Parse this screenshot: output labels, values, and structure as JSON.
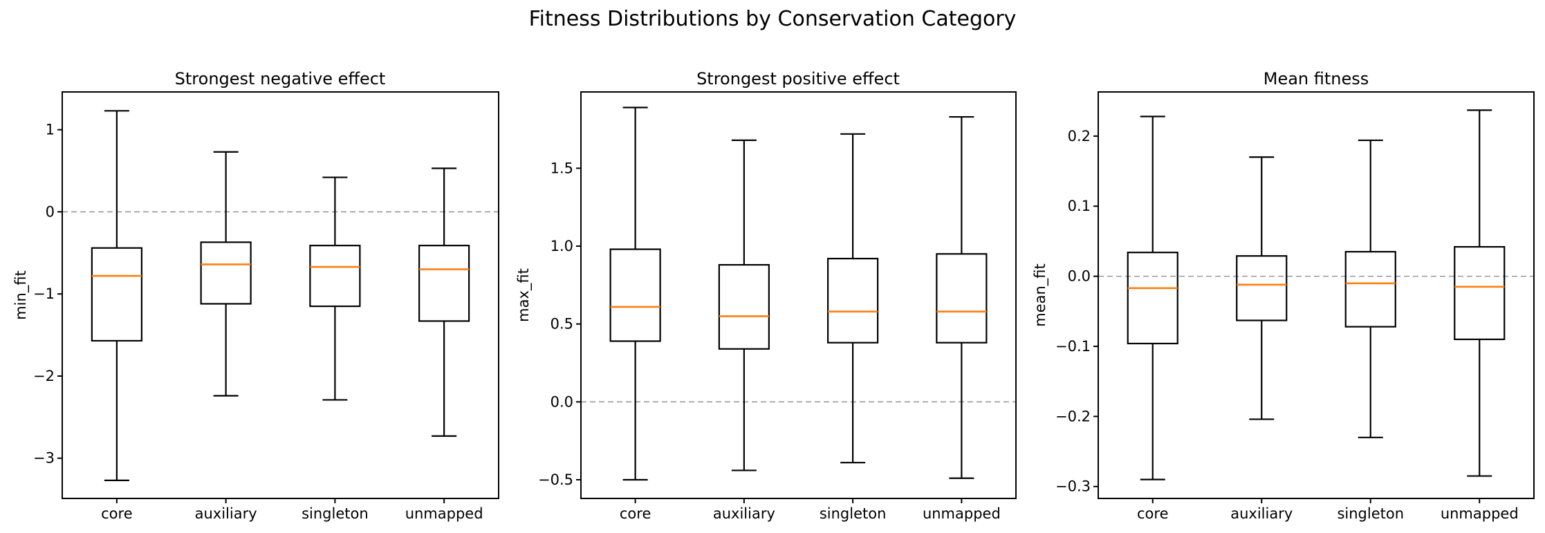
{
  "figure": {
    "title": "Fitness Distributions by Conservation Category",
    "background": "#ffffff"
  },
  "colors": {
    "box_stroke": "#000000",
    "median_line": "#ff7f0e",
    "zero_line": "#999999",
    "spine": "#000000",
    "text": "#000000"
  },
  "chart_data": [
    {
      "type": "box",
      "title": "Strongest negative effect",
      "ylabel": "min_fit",
      "categories": [
        "core",
        "auxiliary",
        "singleton",
        "unmapped"
      ],
      "ylim": [
        -3.49,
        1.46
      ],
      "ytick_values": [
        1,
        0,
        -1,
        -2,
        -3
      ],
      "ytick_labels": [
        "1",
        "0",
        "−1",
        "−2",
        "−3"
      ],
      "zero_line": true,
      "grid": false,
      "series": [
        {
          "category": "core",
          "whisker_low": -3.27,
          "q1": -1.57,
          "median": -0.78,
          "q3": -0.44,
          "whisker_high": 1.23
        },
        {
          "category": "auxiliary",
          "whisker_low": -2.24,
          "q1": -1.12,
          "median": -0.64,
          "q3": -0.37,
          "whisker_high": 0.73
        },
        {
          "category": "singleton",
          "whisker_low": -2.29,
          "q1": -1.15,
          "median": -0.67,
          "q3": -0.41,
          "whisker_high": 0.42
        },
        {
          "category": "unmapped",
          "whisker_low": -2.73,
          "q1": -1.33,
          "median": -0.7,
          "q3": -0.41,
          "whisker_high": 0.53
        }
      ]
    },
    {
      "type": "box",
      "title": "Strongest positive effect",
      "ylabel": "max_fit",
      "categories": [
        "core",
        "auxiliary",
        "singleton",
        "unmapped"
      ],
      "ylim": [
        -0.62,
        1.99
      ],
      "ytick_values": [
        1.5,
        1.0,
        0.5,
        0.0,
        -0.5
      ],
      "ytick_labels": [
        "1.5",
        "1.0",
        "0.5",
        "0.0",
        "−0.5"
      ],
      "zero_line": true,
      "grid": false,
      "series": [
        {
          "category": "core",
          "whisker_low": -0.5,
          "q1": 0.39,
          "median": 0.61,
          "q3": 0.98,
          "whisker_high": 1.89
        },
        {
          "category": "auxiliary",
          "whisker_low": -0.44,
          "q1": 0.34,
          "median": 0.55,
          "q3": 0.88,
          "whisker_high": 1.68
        },
        {
          "category": "singleton",
          "whisker_low": -0.39,
          "q1": 0.38,
          "median": 0.58,
          "q3": 0.92,
          "whisker_high": 1.72
        },
        {
          "category": "unmapped",
          "whisker_low": -0.49,
          "q1": 0.38,
          "median": 0.58,
          "q3": 0.95,
          "whisker_high": 1.83
        }
      ]
    },
    {
      "type": "box",
      "title": "Mean fitness",
      "ylabel": "mean_fit",
      "categories": [
        "core",
        "auxiliary",
        "singleton",
        "unmapped"
      ],
      "ylim": [
        -0.317,
        0.263
      ],
      "ytick_values": [
        0.2,
        0.1,
        0.0,
        -0.1,
        -0.2,
        -0.3
      ],
      "ytick_labels": [
        "0.2",
        "0.1",
        "0.0",
        "−0.1",
        "−0.2",
        "−0.3"
      ],
      "zero_line": true,
      "grid": false,
      "series": [
        {
          "category": "core",
          "whisker_low": -0.29,
          "q1": -0.096,
          "median": -0.017,
          "q3": 0.034,
          "whisker_high": 0.228
        },
        {
          "category": "auxiliary",
          "whisker_low": -0.204,
          "q1": -0.063,
          "median": -0.012,
          "q3": 0.029,
          "whisker_high": 0.17
        },
        {
          "category": "singleton",
          "whisker_low": -0.23,
          "q1": -0.072,
          "median": -0.01,
          "q3": 0.035,
          "whisker_high": 0.194
        },
        {
          "category": "unmapped",
          "whisker_low": -0.285,
          "q1": -0.09,
          "median": -0.015,
          "q3": 0.042,
          "whisker_high": 0.237
        }
      ]
    }
  ]
}
